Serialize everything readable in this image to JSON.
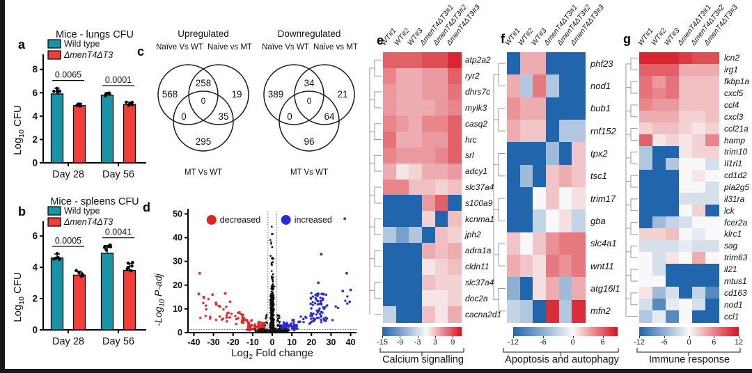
{
  "panel_letters": {
    "a": "a",
    "b": "b",
    "c": "c",
    "d": "d",
    "e": "e",
    "f": "f",
    "g": "g"
  },
  "chart_data": [
    {
      "id": "lungs_cfu",
      "type": "bar",
      "panel": "a",
      "title": "Mice - lungs CFU",
      "ylabel_parts": [
        "Log",
        "10",
        " CFU"
      ],
      "categories": [
        "Day 28",
        "Day 56"
      ],
      "yticks": [
        0,
        2,
        4,
        6,
        8
      ],
      "ylim": [
        0,
        8.7
      ],
      "series": [
        {
          "name": "Wild type",
          "color": "#1795A6",
          "italic": false,
          "values": [
            5.9,
            5.8
          ],
          "errors": [
            0.5,
            0.15
          ]
        },
        {
          "name": "ΔmenT4ΔT3",
          "color": "#F23D38",
          "italic": true,
          "values": [
            4.9,
            5.0
          ],
          "errors": [
            0.2,
            0.2
          ]
        }
      ],
      "p_values": [
        "0.0065",
        "0.0001"
      ]
    },
    {
      "id": "spleens_cfu",
      "type": "bar",
      "panel": "b",
      "title": "Mice - spleens CFU",
      "ylabel_parts": [
        "Log",
        "10",
        " CFU"
      ],
      "categories": [
        "Day 28",
        "Day 56"
      ],
      "yticks": [
        0,
        2,
        4,
        6
      ],
      "ylim": [
        0,
        6.5
      ],
      "series": [
        {
          "name": "Wild type",
          "color": "#1795A6",
          "italic": false,
          "values": [
            4.6,
            4.9
          ],
          "errors": [
            0.25,
            0.5
          ]
        },
        {
          "name": "ΔmenT4ΔT3",
          "color": "#F23D38",
          "italic": true,
          "values": [
            3.5,
            3.8
          ],
          "errors": [
            0.25,
            0.45
          ]
        }
      ],
      "p_values": [
        "0.0005",
        "0.0041"
      ]
    },
    {
      "id": "venn_up",
      "type": "venn3",
      "title": "Upregulated",
      "set_labels": [
        "Naïve Vs WT",
        "Naive vs MT",
        "MT Vs WT"
      ],
      "regions": {
        "A": "568",
        "B": "19",
        "C": "295",
        "AB": "258",
        "AC": "0",
        "BC": "35",
        "ABC": "0"
      }
    },
    {
      "id": "venn_down",
      "type": "venn3",
      "title": "Downregulated",
      "set_labels": [
        "Naïve Vs WT",
        "Naive vs MT",
        "MT Vs WT"
      ],
      "regions": {
        "A": "389",
        "B": "21",
        "C": "96",
        "AB": "34",
        "AC": "0",
        "BC": "64",
        "ABC": "0"
      }
    },
    {
      "id": "volcano",
      "type": "scatter",
      "panel": "d",
      "xlabel_parts": [
        "Log",
        "2",
        " Fold change"
      ],
      "ylabel_parts": [
        "-Log",
        "10",
        " P-adj"
      ],
      "xticks": [
        -40,
        -30,
        -20,
        -10,
        0,
        10,
        20,
        30,
        40
      ],
      "yticks": [
        0,
        10,
        20,
        30,
        40,
        50
      ],
      "xlim": [
        -43,
        43
      ],
      "ylim": [
        0,
        51
      ],
      "legend": [
        {
          "label": "decreased",
          "color": "#DF2222"
        },
        {
          "label": "increased",
          "color": "#2B2BD6"
        }
      ],
      "point_colors": {
        "nonsig": "#0a0a0a",
        "decreased": "#E02828",
        "increased": "#2B2BD6"
      },
      "thresholds": {
        "x": [
          -2.2,
          2.2
        ],
        "y": 1.3
      },
      "points_spec": {
        "seed": 7,
        "red_outliers": [
          [
            -37,
            25
          ],
          [
            -30.5,
            16
          ],
          [
            -24,
            16.5
          ],
          [
            -21.5,
            13
          ],
          [
            -35,
            15
          ]
        ],
        "blue_outliers": [
          [
            37,
            48
          ],
          [
            25,
            33
          ],
          [
            23.5,
            21
          ],
          [
            38,
            25
          ],
          [
            36,
            17.5
          ],
          [
            39.5,
            13
          ],
          [
            40,
            18
          ]
        ]
      }
    },
    {
      "id": "heatmap_calcium",
      "type": "heatmap",
      "panel": "e",
      "caption": "Calcium signalling",
      "columns": [
        "WT#1",
        "WT#2",
        "WT#3",
        "ΔmenT4ΔT3#1",
        "ΔmenT4ΔT3#2",
        "ΔmenT4ΔT3#3"
      ],
      "genes": [
        "atp2a2",
        "ryr2",
        "dhrs7c",
        "mylk3",
        "casq2",
        "hrc",
        "srl",
        "adcy1",
        "slc37a4",
        "s100a9",
        "kcnma1",
        "jph2",
        "adra1a",
        "cldn11",
        "slc37a4",
        "doc2a",
        "cacna2d1"
      ],
      "matrix": [
        [
          8,
          8,
          8,
          9,
          9,
          11
        ],
        [
          6,
          4,
          4,
          5,
          5,
          8
        ],
        [
          5,
          4,
          4,
          5,
          5,
          7
        ],
        [
          5,
          4,
          4,
          4,
          5,
          6
        ],
        [
          6,
          5,
          4,
          6,
          6,
          8
        ],
        [
          7,
          4,
          4,
          5,
          5,
          8
        ],
        [
          6,
          5,
          5,
          5,
          6,
          8
        ],
        [
          4,
          1,
          2,
          4,
          4,
          5
        ],
        [
          6,
          6,
          3,
          3,
          2,
          3
        ],
        [
          -15,
          -15,
          -15,
          5,
          8,
          -15
        ],
        [
          -15,
          -15,
          -15,
          2,
          -15,
          3
        ],
        [
          -5,
          -9,
          -5,
          -15,
          3,
          2
        ],
        [
          -15,
          -15,
          -15,
          4,
          3,
          4
        ],
        [
          -15,
          -15,
          -15,
          1,
          2,
          3
        ],
        [
          -15,
          -15,
          -15,
          3,
          2,
          2
        ],
        [
          -15,
          -15,
          -15,
          1,
          1,
          2
        ],
        [
          -4,
          -15,
          -15,
          3,
          1,
          4
        ]
      ],
      "scale": {
        "min": -15,
        "max": 12,
        "ticks": [
          -15,
          -9,
          -3,
          3,
          9
        ]
      },
      "colors": {
        "low": "#2166AC",
        "mid": "#F9F8F8",
        "high": "#D6141F"
      }
    },
    {
      "id": "heatmap_apoptosis",
      "type": "heatmap",
      "panel": "f",
      "caption": "Apoptosis and autophagy",
      "columns": [
        "WT#1",
        "WT#2",
        "WT#3",
        "ΔmenT4ΔT3#1",
        "ΔmenT4ΔT3#2",
        "ΔmenT4ΔT3#3"
      ],
      "genes": [
        "phf23",
        "nod1",
        "bub1",
        "rnf152",
        "tpx2",
        "tsc1",
        "trim17",
        "gba",
        "slc4a1",
        "wnt11",
        "atg16l1",
        "mfn2"
      ],
      "matrix": [
        [
          -12,
          3,
          3,
          -12,
          -12,
          -12
        ],
        [
          3,
          -4,
          5,
          -4,
          -12,
          -12
        ],
        [
          4,
          3,
          3,
          -12,
          -12,
          -12
        ],
        [
          3,
          2,
          2,
          -12,
          -4,
          -4
        ],
        [
          -12,
          -12,
          -12,
          -5,
          -12,
          2
        ],
        [
          -12,
          -5,
          -12,
          2,
          3,
          2
        ],
        [
          -12,
          -12,
          0,
          2,
          0,
          1
        ],
        [
          -12,
          -12,
          -3,
          0,
          1,
          -3
        ],
        [
          2,
          0,
          2,
          4,
          5,
          5
        ],
        [
          3,
          2,
          1,
          5,
          4,
          5
        ],
        [
          -6,
          -12,
          1,
          3,
          -5,
          3
        ],
        [
          -3,
          -4,
          -12,
          8,
          -4,
          8
        ]
      ],
      "scale": {
        "min": -12,
        "max": 9,
        "ticks": [
          -12,
          -6,
          0,
          6
        ]
      },
      "colors": {
        "low": "#2166AC",
        "mid": "#F9F8F8",
        "high": "#D6141F"
      }
    },
    {
      "id": "heatmap_immune",
      "type": "heatmap",
      "panel": "g",
      "caption": "Immune response",
      "columns": [
        "WT#1",
        "WT#2",
        "WT#3",
        "ΔmenT4ΔT3#1",
        "ΔmenT4ΔT3#2",
        "ΔmenT4ΔT3#3"
      ],
      "genes": [
        "lcn2",
        "irg1",
        "fkbp1a",
        "cxcl5",
        "ccl4",
        "cxcl3",
        "ccl21a",
        "hamp",
        "trim10",
        "Il1rl1",
        "cd1d2",
        "pla2g5",
        "il31ra",
        "lck",
        "fcer2a",
        "klrc1",
        "sag",
        "trim63",
        "il21",
        "mtus1",
        "cd163",
        "nod1",
        "ccl1"
      ],
      "matrix": [
        [
          11,
          11,
          11,
          10,
          9,
          9
        ],
        [
          8,
          8,
          8,
          4,
          4,
          4
        ],
        [
          7,
          5,
          7,
          3,
          3,
          3
        ],
        [
          7,
          6,
          7,
          3,
          3,
          3
        ],
        [
          6,
          5,
          5,
          3,
          3,
          3
        ],
        [
          4,
          4,
          4,
          2,
          2,
          3
        ],
        [
          2,
          3,
          3,
          2,
          1,
          2
        ],
        [
          8,
          1,
          2,
          1,
          2,
          6
        ],
        [
          -4,
          -12,
          -12,
          1,
          2,
          2
        ],
        [
          -4,
          -12,
          -4,
          0,
          0,
          -2
        ],
        [
          -12,
          -12,
          -12,
          0,
          1,
          0
        ],
        [
          -12,
          -12,
          -12,
          0,
          0,
          -2
        ],
        [
          -12,
          -12,
          -12,
          -2,
          -2,
          -2
        ],
        [
          -12,
          -12,
          -12,
          0,
          2,
          -12
        ],
        [
          -12,
          -5,
          -3,
          -2,
          0,
          0
        ],
        [
          2,
          2,
          3,
          0,
          -1,
          0
        ],
        [
          -2,
          -2,
          -2,
          -1,
          -2,
          -2
        ],
        [
          0,
          -2,
          1,
          0,
          4,
          0
        ],
        [
          0,
          -2,
          -12,
          -12,
          -12,
          -12
        ],
        [
          0,
          0,
          -12,
          -12,
          -12,
          -12
        ],
        [
          1,
          -5,
          -2,
          -12,
          -3,
          -9
        ],
        [
          -2,
          -9,
          -1,
          0,
          -2,
          -12
        ],
        [
          -4,
          -1,
          -9,
          0,
          -12,
          -12
        ]
      ],
      "scale": {
        "min": -12,
        "max": 12,
        "ticks": [
          -12,
          -6,
          0,
          6,
          12
        ]
      },
      "colors": {
        "low": "#2166AC",
        "mid": "#F9F8F8",
        "high": "#D6141F"
      }
    }
  ]
}
